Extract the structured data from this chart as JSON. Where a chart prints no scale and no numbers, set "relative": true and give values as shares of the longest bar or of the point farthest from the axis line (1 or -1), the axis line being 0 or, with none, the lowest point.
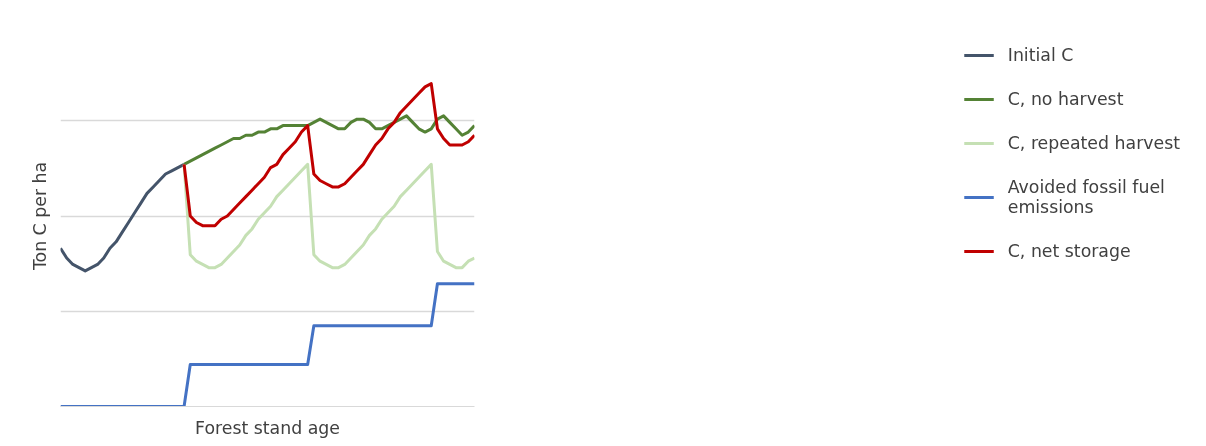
{
  "chart_data": {
    "type": "line",
    "relative": true,
    "xlabel": "Forest stand age",
    "ylabel": "Ton C per ha",
    "grid": "y",
    "legend": "right",
    "line_style": "solid",
    "marker": "none",
    "categories": [
      null,
      null,
      null,
      null,
      null,
      null,
      null,
      null,
      null,
      null,
      null,
      null,
      null,
      null,
      null,
      null,
      null,
      null,
      null,
      null,
      null,
      null,
      null,
      null,
      null,
      null,
      null,
      null,
      null,
      null,
      null,
      null,
      null,
      null,
      null,
      null,
      null,
      null,
      null,
      null,
      null,
      null,
      null,
      null,
      null,
      null,
      null,
      null,
      null,
      null,
      null,
      null,
      null,
      null,
      null,
      null,
      null,
      null,
      null,
      null,
      null,
      null,
      null,
      null,
      null,
      null,
      null,
      null
    ],
    "series": [
      {
        "name": "Initial C",
        "color": "#44546a",
        "values": [
          0.49,
          0.46,
          0.44,
          0.43,
          0.42,
          0.43,
          0.44,
          0.46,
          0.49,
          0.51,
          0.54,
          0.57,
          0.6,
          0.63,
          0.66,
          0.68,
          0.7,
          0.72,
          0.73,
          0.74,
          0.75,
          null,
          null,
          null,
          null,
          null,
          null,
          null,
          null,
          null,
          null,
          null,
          null,
          null,
          null,
          null,
          null,
          null,
          null,
          null,
          null,
          null,
          null,
          null,
          null,
          null,
          null,
          null,
          null,
          null,
          null,
          null,
          null,
          null,
          null,
          null,
          null,
          null,
          null,
          null,
          null,
          null,
          null,
          null,
          null,
          null,
          null,
          null
        ]
      },
      {
        "name": "C, no harvest",
        "color": "#548235",
        "values": [
          null,
          null,
          null,
          null,
          null,
          null,
          null,
          null,
          null,
          null,
          null,
          null,
          null,
          null,
          null,
          null,
          null,
          null,
          null,
          null,
          0.75,
          0.76,
          0.77,
          0.78,
          0.79,
          0.8,
          0.81,
          0.82,
          0.83,
          0.83,
          0.84,
          0.84,
          0.85,
          0.85,
          0.86,
          0.86,
          0.87,
          0.87,
          0.87,
          0.87,
          0.87,
          0.88,
          0.89,
          0.88,
          0.87,
          0.86,
          0.86,
          0.88,
          0.89,
          0.89,
          0.88,
          0.86,
          0.86,
          0.87,
          0.88,
          0.89,
          0.9,
          0.88,
          0.86,
          0.85,
          0.86,
          0.89,
          0.9,
          0.88,
          0.86,
          0.84,
          0.85,
          0.87
        ]
      },
      {
        "name": "C, repeated harvest",
        "color": "#c5e0b4",
        "values": [
          null,
          null,
          null,
          null,
          null,
          null,
          null,
          null,
          null,
          null,
          null,
          null,
          null,
          null,
          null,
          null,
          null,
          null,
          null,
          null,
          0.75,
          0.47,
          0.45,
          0.44,
          0.43,
          0.43,
          0.44,
          0.46,
          0.48,
          0.5,
          0.53,
          0.55,
          0.58,
          0.6,
          0.62,
          0.65,
          0.67,
          0.69,
          0.71,
          0.73,
          0.75,
          0.47,
          0.45,
          0.44,
          0.43,
          0.43,
          0.44,
          0.46,
          0.48,
          0.5,
          0.53,
          0.55,
          0.58,
          0.6,
          0.62,
          0.65,
          0.67,
          0.69,
          0.71,
          0.73,
          0.75,
          0.48,
          0.45,
          0.44,
          0.43,
          0.43,
          0.45,
          0.46
        ]
      },
      {
        "name": "Avoided fossil fuel emissions",
        "color": "#4472c4",
        "values": [
          0,
          0,
          0,
          0,
          0,
          0,
          0,
          0,
          0,
          0,
          0,
          0,
          0,
          0,
          0,
          0,
          0,
          0,
          0,
          0,
          0,
          0.13,
          0.13,
          0.13,
          0.13,
          0.13,
          0.13,
          0.13,
          0.13,
          0.13,
          0.13,
          0.13,
          0.13,
          0.13,
          0.13,
          0.13,
          0.13,
          0.13,
          0.13,
          0.13,
          0.13,
          0.25,
          0.25,
          0.25,
          0.25,
          0.25,
          0.25,
          0.25,
          0.25,
          0.25,
          0.25,
          0.25,
          0.25,
          0.25,
          0.25,
          0.25,
          0.25,
          0.25,
          0.25,
          0.25,
          0.25,
          0.38,
          0.38,
          0.38,
          0.38,
          0.38,
          0.38,
          0.38
        ]
      },
      {
        "name": "C, net storage",
        "color": "#c00000",
        "values": [
          null,
          null,
          null,
          null,
          null,
          null,
          null,
          null,
          null,
          null,
          null,
          null,
          null,
          null,
          null,
          null,
          null,
          null,
          null,
          null,
          0.75,
          0.59,
          0.57,
          0.56,
          0.56,
          0.56,
          0.58,
          0.59,
          0.61,
          0.63,
          0.65,
          0.67,
          0.69,
          0.71,
          0.74,
          0.75,
          0.78,
          0.8,
          0.82,
          0.85,
          0.87,
          0.72,
          0.7,
          0.69,
          0.68,
          0.68,
          0.69,
          0.71,
          0.73,
          0.75,
          0.78,
          0.81,
          0.83,
          0.86,
          0.88,
          0.91,
          0.93,
          0.95,
          0.97,
          0.99,
          1.0,
          0.86,
          0.83,
          0.81,
          0.81,
          0.81,
          0.82,
          0.84
        ]
      }
    ]
  }
}
